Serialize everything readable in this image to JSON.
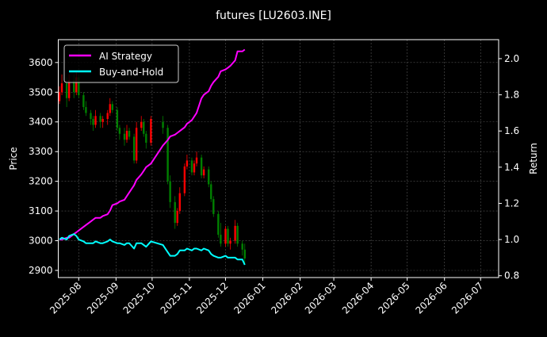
{
  "chart_data": {
    "type": "candlestick+line",
    "title": "futures [LU2603.INE]",
    "ylabel_left": "Price",
    "ylabel_right": "Return",
    "xlim": [
      "2025-07-15",
      "2026-07-16"
    ],
    "ylim_left": [
      2876,
      3677
    ],
    "ylim_right": [
      0.79,
      2.105
    ],
    "x_ticks": [
      "2025-08",
      "2025-09",
      "2025-10",
      "2025-11",
      "2025-12",
      "2026-01",
      "2026-02",
      "2026-03",
      "2026-04",
      "2026-05",
      "2026-06",
      "2026-07"
    ],
    "y_ticks_left": [
      "2900",
      "3000",
      "3100",
      "3200",
      "3300",
      "3400",
      "3500",
      "3600"
    ],
    "y_ticks_right": [
      "0.8",
      "1.0",
      "1.2",
      "1.4",
      "1.6",
      "1.8",
      "2.0"
    ],
    "grid": true,
    "legend_position": "top-left",
    "colors": {
      "up": "#ff0000",
      "down": "#008000",
      "ai": "#ff00ff",
      "bh": "#00ffff",
      "grid": "#555555"
    },
    "dates": [
      "2025-07-16",
      "2025-07-18",
      "2025-07-22",
      "2025-07-24",
      "2025-07-28",
      "2025-07-30",
      "2025-08-01",
      "2025-08-05",
      "2025-08-07",
      "2025-08-11",
      "2025-08-13",
      "2025-08-15",
      "2025-08-19",
      "2025-08-21",
      "2025-08-25",
      "2025-08-27",
      "2025-08-29",
      "2025-09-02",
      "2025-09-04",
      "2025-09-08",
      "2025-09-10",
      "2025-09-12",
      "2025-09-16",
      "2025-09-18",
      "2025-09-22",
      "2025-09-24",
      "2025-09-26",
      "2025-09-30",
      "2025-10-10",
      "2025-10-14",
      "2025-10-16",
      "2025-10-20",
      "2025-10-22",
      "2025-10-24",
      "2025-10-28",
      "2025-10-30",
      "2025-11-03",
      "2025-11-05",
      "2025-11-07",
      "2025-11-11",
      "2025-11-13",
      "2025-11-17",
      "2025-11-19",
      "2025-11-21",
      "2025-11-25",
      "2025-11-27",
      "2025-12-01",
      "2025-12-03",
      "2025-12-05",
      "2025-12-09",
      "2025-12-11",
      "2025-12-15",
      "2025-12-17"
    ],
    "open": [
      3470,
      3500,
      3530,
      3480,
      3540,
      3500,
      3550,
      3490,
      3450,
      3430,
      3410,
      3390,
      3420,
      3400,
      3410,
      3430,
      3460,
      3440,
      3380,
      3360,
      3340,
      3370,
      3350,
      3270,
      3380,
      3400,
      3360,
      3330,
      3400,
      3380,
      3200,
      3130,
      3060,
      3100,
      3160,
      3250,
      3270,
      3230,
      3260,
      3280,
      3220,
      3240,
      3190,
      3140,
      3090,
      3020,
      2990,
      3040,
      2990,
      3000,
      3050,
      2990,
      2970
    ],
    "high": [
      3520,
      3560,
      3550,
      3560,
      3560,
      3570,
      3560,
      3500,
      3470,
      3440,
      3420,
      3440,
      3430,
      3420,
      3440,
      3480,
      3470,
      3450,
      3390,
      3380,
      3390,
      3380,
      3360,
      3400,
      3420,
      3410,
      3370,
      3420,
      3420,
      3390,
      3220,
      3150,
      3110,
      3180,
      3260,
      3290,
      3280,
      3270,
      3300,
      3290,
      3250,
      3250,
      3200,
      3150,
      3100,
      3060,
      3050,
      3050,
      3010,
      3070,
      3060,
      3000,
      2990
    ],
    "low": [
      3460,
      3490,
      3450,
      3470,
      3480,
      3490,
      3480,
      3440,
      3420,
      3390,
      3370,
      3380,
      3380,
      3380,
      3390,
      3420,
      3430,
      3370,
      3340,
      3320,
      3330,
      3340,
      3260,
      3260,
      3370,
      3350,
      3310,
      3320,
      3360,
      3190,
      3110,
      3040,
      3050,
      3090,
      3150,
      3240,
      3220,
      3220,
      3250,
      3210,
      3210,
      3180,
      3130,
      3080,
      3010,
      2980,
      2980,
      2980,
      2970,
      2990,
      2980,
      2950,
      2920
    ],
    "close": [
      3500,
      3530,
      3480,
      3540,
      3500,
      3550,
      3490,
      3450,
      3430,
      3410,
      3390,
      3420,
      3400,
      3410,
      3430,
      3460,
      3440,
      3380,
      3360,
      3340,
      3370,
      3350,
      3270,
      3380,
      3400,
      3360,
      3330,
      3410,
      3380,
      3200,
      3130,
      3060,
      3100,
      3160,
      3250,
      3270,
      3230,
      3260,
      3280,
      3220,
      3240,
      3190,
      3140,
      3090,
      3020,
      2990,
      3040,
      2990,
      3000,
      3050,
      2990,
      2970,
      2940
    ],
    "series": [
      {
        "name": "AI Strategy",
        "values": [
          1.0,
          1.0,
          1.01,
          1.01,
          1.03,
          1.04,
          1.05,
          1.07,
          1.08,
          1.1,
          1.11,
          1.12,
          1.12,
          1.13,
          1.14,
          1.16,
          1.19,
          1.2,
          1.21,
          1.22,
          1.24,
          1.26,
          1.3,
          1.33,
          1.36,
          1.38,
          1.4,
          1.42,
          1.52,
          1.55,
          1.57,
          1.58,
          1.59,
          1.6,
          1.62,
          1.64,
          1.66,
          1.68,
          1.7,
          1.78,
          1.8,
          1.82,
          1.85,
          1.87,
          1.9,
          1.93,
          1.94,
          1.95,
          1.96,
          1.99,
          2.04,
          2.04,
          2.05
        ]
      },
      {
        "name": "Buy-and-Hold",
        "values": [
          1.0,
          1.01,
          1.0,
          1.02,
          1.03,
          1.02,
          1.0,
          0.99,
          0.98,
          0.98,
          0.98,
          0.99,
          0.98,
          0.98,
          0.99,
          1.0,
          0.99,
          0.98,
          0.98,
          0.97,
          0.98,
          0.98,
          0.95,
          0.98,
          0.98,
          0.97,
          0.96,
          0.99,
          0.97,
          0.93,
          0.91,
          0.91,
          0.92,
          0.94,
          0.94,
          0.95,
          0.94,
          0.95,
          0.95,
          0.94,
          0.95,
          0.94,
          0.92,
          0.91,
          0.9,
          0.9,
          0.91,
          0.9,
          0.9,
          0.9,
          0.89,
          0.89,
          0.86
        ]
      }
    ]
  }
}
